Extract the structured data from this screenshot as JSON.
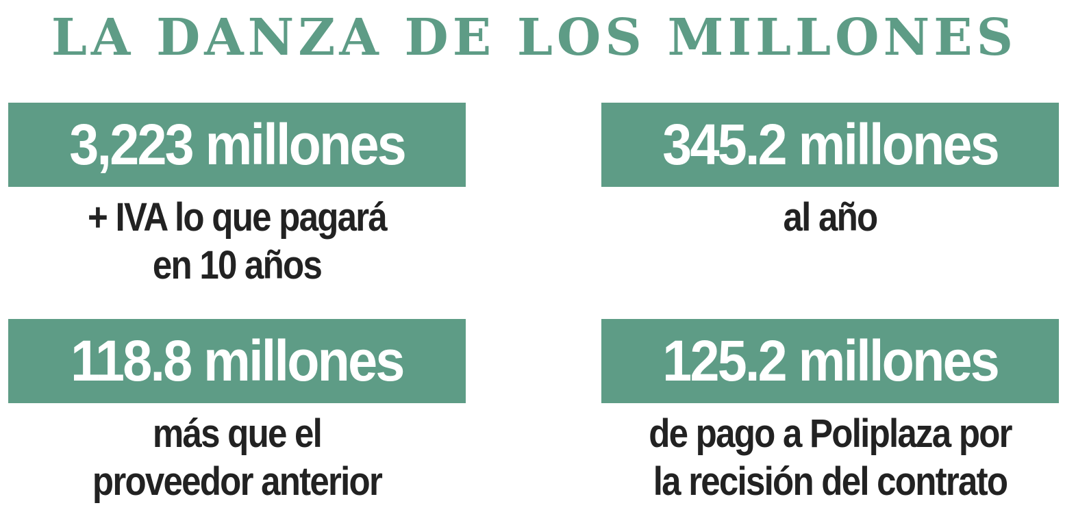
{
  "title": "LA DANZA DE LOS MILLONES",
  "cards": [
    {
      "amount": "3,223 millones",
      "description": [
        "+ IVA lo que pagará",
        "en 10 años"
      ]
    },
    {
      "amount": "345.2 millones",
      "description": [
        "al año"
      ]
    },
    {
      "amount": "118.8 millones",
      "description": [
        "más que el",
        "proveedor anterior"
      ]
    },
    {
      "amount": "125.2 millones",
      "description": [
        "de pago a Poliplaza por",
        "la recisión del contrato"
      ]
    }
  ]
}
